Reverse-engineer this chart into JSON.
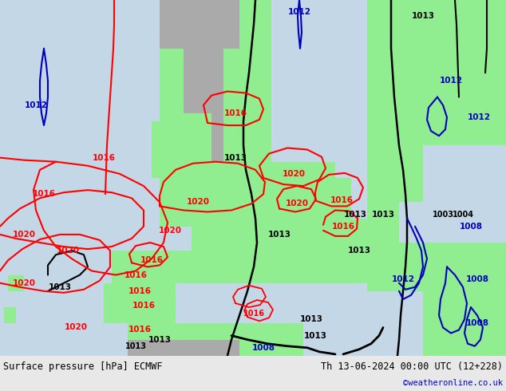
{
  "title_left": "Surface pressure [hPa] ECMWF",
  "title_right": "Th 13-06-2024 00:00 UTC (12+228)",
  "watermark": "©weatheronline.co.uk",
  "watermark_color": "#0000cc",
  "bg_color": "#e8e8e8",
  "map_bg": "#d8d8d8",
  "land_green": [
    144,
    238,
    144
  ],
  "sea_color": [
    195,
    215,
    230
  ],
  "mountain_color": [
    170,
    170,
    170
  ],
  "figsize": [
    6.34,
    4.9
  ],
  "dpi": 100
}
